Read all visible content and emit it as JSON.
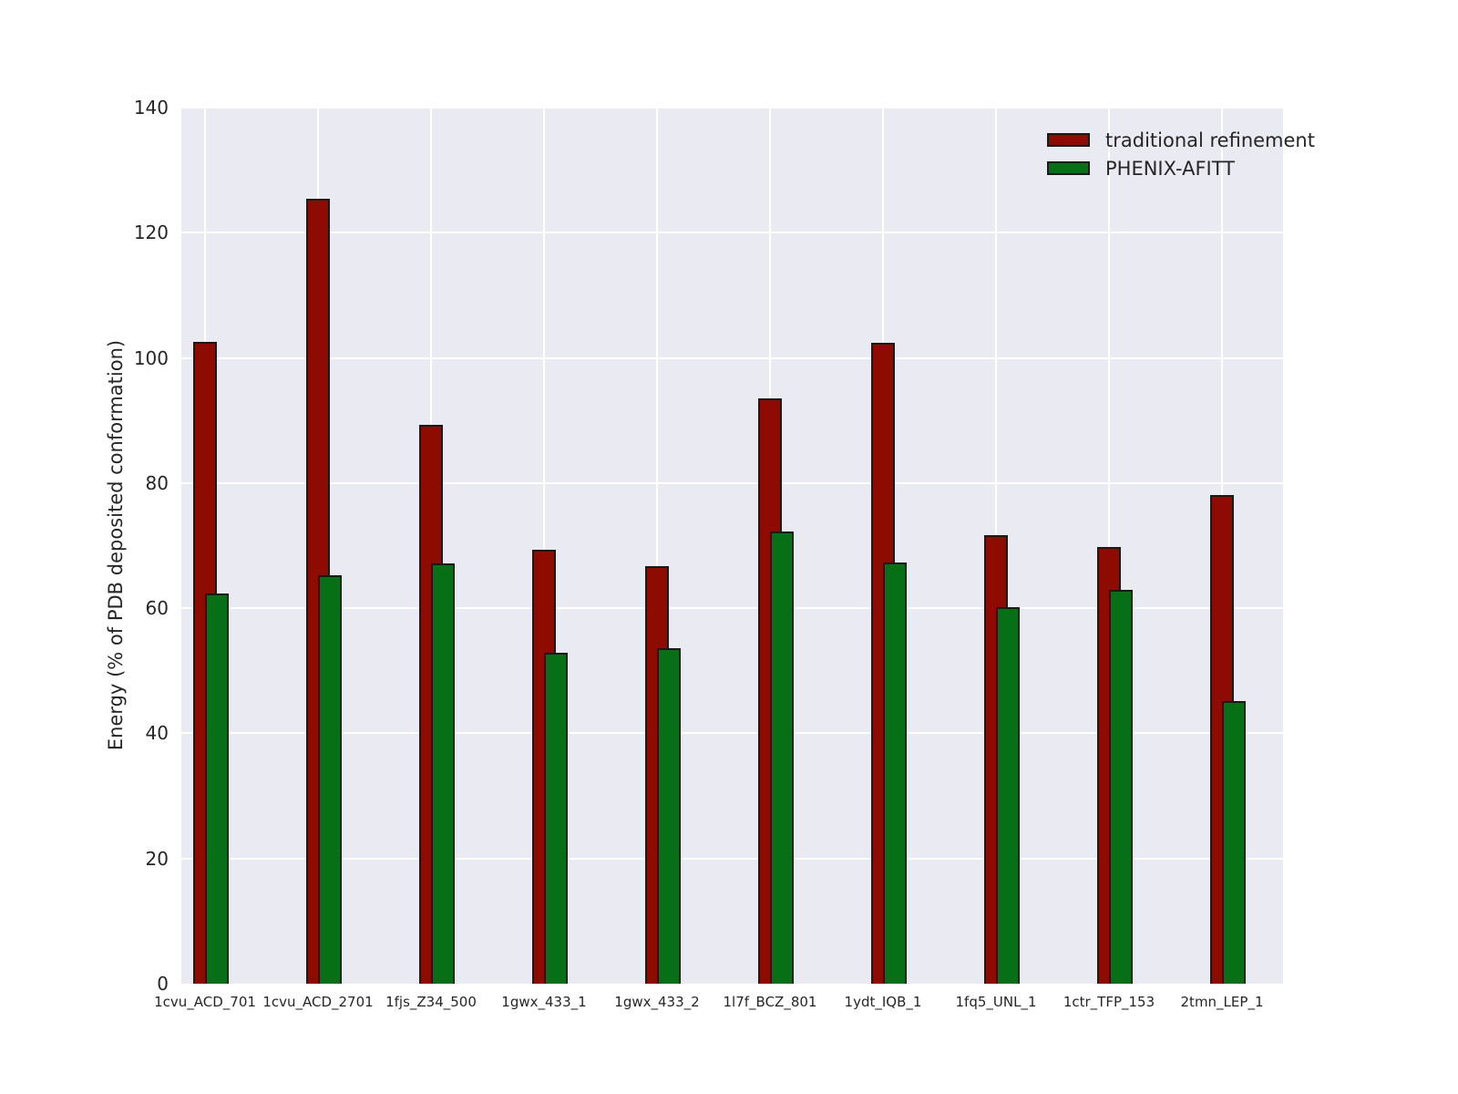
{
  "chart_data": {
    "type": "bar",
    "title": "",
    "xlabel": "",
    "ylabel": "Energy (% of PDB deposited conformation)",
    "ylim": [
      0,
      140
    ],
    "yticks": [
      0,
      20,
      40,
      60,
      80,
      100,
      120,
      140
    ],
    "grid": true,
    "legend_position": "upper right",
    "categories": [
      "1cvu_ACD_701",
      "1cvu_ACD_2701",
      "1fjs_Z34_500",
      "1gwx_433_1",
      "1gwx_433_2",
      "1l7f_BCZ_801",
      "1ydt_IQB_1",
      "1fq5_UNL_1",
      "1ctr_TFP_153",
      "2tmn_LEP_1"
    ],
    "series": [
      {
        "name": "traditional refinement",
        "color": "#8e0b02",
        "values": [
          102.5,
          125.4,
          89.3,
          69.3,
          66.7,
          93.5,
          102.4,
          71.7,
          69.8,
          78.1
        ]
      },
      {
        "name": "PHENIX-AFITT",
        "color": "#077017",
        "values": [
          62.3,
          65.3,
          67.2,
          52.9,
          53.6,
          72.3,
          67.3,
          60.2,
          62.9,
          45.2
        ]
      }
    ],
    "colors": {
      "plot_background": "#eaeaf2",
      "grid_line": "#ffffff",
      "bar_edge": "#1a1a1a",
      "text": "#262626"
    }
  }
}
